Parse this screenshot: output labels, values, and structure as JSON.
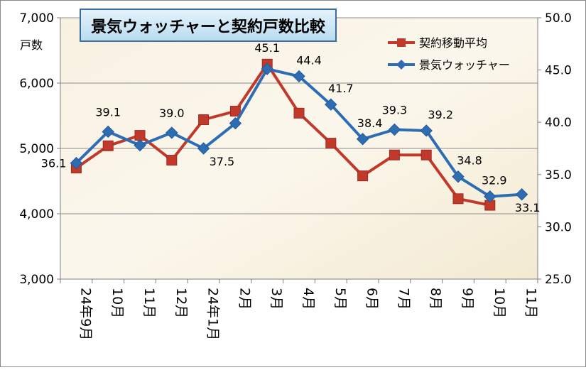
{
  "chart_data": {
    "type": "line",
    "title": "景気ウォッチャーと契約戸数比較",
    "left_axis": {
      "label": "戸数",
      "ylim": [
        3000,
        7000
      ],
      "ticks": [
        "3,000",
        "4,000",
        "5,000",
        "6,000",
        "7,000"
      ],
      "tick_values": [
        3000,
        4000,
        5000,
        6000,
        7000
      ]
    },
    "right_axis": {
      "ylim": [
        25.0,
        50.0
      ],
      "ticks": [
        "25.0",
        "30.0",
        "35.0",
        "40.0",
        "45.0",
        "50.0"
      ],
      "tick_values": [
        25,
        30,
        35,
        40,
        45,
        50
      ]
    },
    "categories": [
      "24年9月",
      "10月",
      "11月",
      "12月",
      "24年1月",
      "2月",
      "3月",
      "4月",
      "5月",
      "6月",
      "7月",
      "8月",
      "9月",
      "10月",
      "11月"
    ],
    "series": [
      {
        "name": "契約移動平均",
        "axis": "left",
        "color": "#c0392b",
        "marker": "square",
        "values": [
          4700,
          5040,
          5200,
          4820,
          5440,
          5570,
          6290,
          5540,
          5080,
          4580,
          4900,
          4900,
          4230,
          4130,
          null
        ]
      },
      {
        "name": "景気ウォッチャー",
        "axis": "right",
        "color": "#2e6db4",
        "marker": "diamond",
        "values": [
          36.1,
          39.1,
          37.8,
          39.0,
          37.5,
          39.9,
          45.1,
          44.4,
          41.7,
          38.4,
          39.3,
          39.2,
          34.8,
          32.9,
          33.1
        ],
        "labels": [
          "36.1",
          "39.1",
          null,
          "39.0",
          "37.5",
          null,
          "45.1",
          "44.4",
          "41.7",
          "38.4",
          "39.3",
          "39.2",
          "34.8",
          "32.9",
          "33.1"
        ]
      }
    ],
    "grid": true,
    "legend_placement": "top-right"
  }
}
